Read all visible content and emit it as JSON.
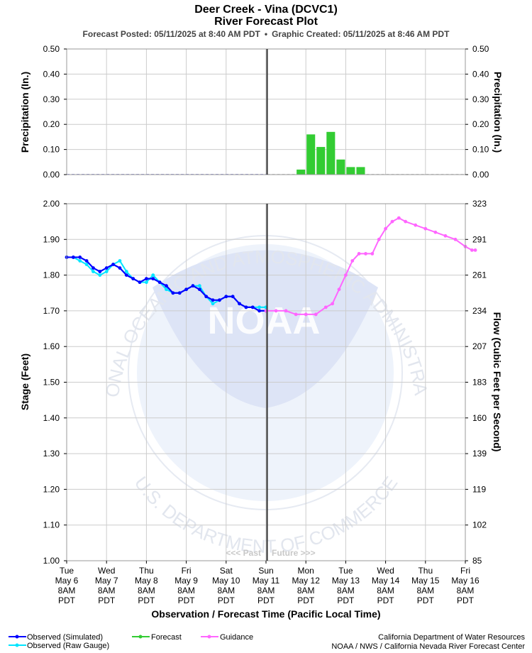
{
  "header": {
    "title": "Deer Creek - Vina (DCVC1)",
    "subtitle": "River Forecast Plot",
    "forecast_posted": "Forecast Posted: 05/11/2025 at 8:40 AM PDT",
    "separator": "•",
    "graphic_created": "Graphic Created: 05/11/2025 at 8:46 AM PDT"
  },
  "watermark": {
    "logo_text": "NOAA",
    "ring_top": "NATIONAL OCEANIC AND ATMOSPHERIC ADMINISTRATION",
    "ring_bottom": "U.S. DEPARTMENT OF COMMERCE"
  },
  "colors": {
    "observed_simulated": "#0000ff",
    "observed_raw": "#00e5ff",
    "forecast": "#33cc33",
    "guidance": "#ff66ff",
    "now_line": "#333333",
    "grid": "#cccccc"
  },
  "legend": {
    "observed_simulated": "Observed (Simulated)",
    "observed_raw": "Observed (Raw Gauge)",
    "forecast": "Forecast",
    "guidance": "Guidance"
  },
  "credits": {
    "line1": "California Department of Water Resources",
    "line2": "NOAA / NWS / California Nevada River Forecast Center"
  },
  "past_label": "<<< Past",
  "future_label": "Future >>>",
  "chart_data": {
    "type": "line",
    "xlabel": "Observation / Forecast Time (Pacific Local Time)",
    "x_ticks": [
      {
        "day": "Tue",
        "date": "May 6",
        "time": "8AM",
        "tz": "PDT"
      },
      {
        "day": "Wed",
        "date": "May 7",
        "time": "8AM",
        "tz": "PDT"
      },
      {
        "day": "Thu",
        "date": "May 8",
        "time": "8AM",
        "tz": "PDT"
      },
      {
        "day": "Fri",
        "date": "May 9",
        "time": "8AM",
        "tz": "PDT"
      },
      {
        "day": "Sat",
        "date": "May 10",
        "time": "8AM",
        "tz": "PDT"
      },
      {
        "day": "Sun",
        "date": "May 11",
        "time": "8AM",
        "tz": "PDT"
      },
      {
        "day": "Mon",
        "date": "May 12",
        "time": "8AM",
        "tz": "PDT"
      },
      {
        "day": "Tue",
        "date": "May 13",
        "time": "8AM",
        "tz": "PDT"
      },
      {
        "day": "Wed",
        "date": "May 14",
        "time": "8AM",
        "tz": "PDT"
      },
      {
        "day": "Thu",
        "date": "May 15",
        "time": "8AM",
        "tz": "PDT"
      },
      {
        "day": "Fri",
        "date": "May 16",
        "time": "8AM",
        "tz": "PDT"
      }
    ],
    "now": "2025-05-11T08:40",
    "precipitation": {
      "ylabel_left": "Precipitation (In.)",
      "ylabel_right": "Precipitation (In.)",
      "ylim": [
        0,
        0.5
      ],
      "y_ticks": [
        "0.00",
        "0.10",
        "0.20",
        "0.30",
        "0.40",
        "0.50"
      ],
      "observed_zero_line": true,
      "forecast_bars": [
        {
          "start": "2025-05-12T02:00",
          "end": "2025-05-12T08:00",
          "value": 0.02
        },
        {
          "start": "2025-05-12T08:00",
          "end": "2025-05-12T14:00",
          "value": 0.16
        },
        {
          "start": "2025-05-12T14:00",
          "end": "2025-05-12T20:00",
          "value": 0.11
        },
        {
          "start": "2025-05-12T20:00",
          "end": "2025-05-13T02:00",
          "value": 0.17
        },
        {
          "start": "2025-05-13T02:00",
          "end": "2025-05-13T08:00",
          "value": 0.06
        },
        {
          "start": "2025-05-13T08:00",
          "end": "2025-05-13T14:00",
          "value": 0.03
        },
        {
          "start": "2025-05-13T14:00",
          "end": "2025-05-13T20:00",
          "value": 0.03
        }
      ]
    },
    "stage": {
      "ylabel_left": "Stage (Feet)",
      "ylabel_right": "Flow (Cubic Feet per Second)",
      "ylim": [
        1.0,
        2.0
      ],
      "y_ticks": [
        "1.00",
        "1.10",
        "1.20",
        "1.30",
        "1.40",
        "1.50",
        "1.60",
        "1.70",
        "1.80",
        "1.90",
        "2.00"
      ],
      "flow_ticks": [
        "85",
        "102",
        "119",
        "139",
        "160",
        "183",
        "207",
        "234",
        "261",
        "291",
        "323"
      ],
      "observed_simulated": [
        [
          "2025-05-06T08:00",
          1.85
        ],
        [
          "2025-05-06T12:00",
          1.85
        ],
        [
          "2025-05-06T16:00",
          1.85
        ],
        [
          "2025-05-06T20:00",
          1.84
        ],
        [
          "2025-05-07T00:00",
          1.82
        ],
        [
          "2025-05-07T04:00",
          1.81
        ],
        [
          "2025-05-07T08:00",
          1.82
        ],
        [
          "2025-05-07T12:00",
          1.83
        ],
        [
          "2025-05-07T16:00",
          1.82
        ],
        [
          "2025-05-07T20:00",
          1.8
        ],
        [
          "2025-05-08T00:00",
          1.79
        ],
        [
          "2025-05-08T04:00",
          1.78
        ],
        [
          "2025-05-08T08:00",
          1.79
        ],
        [
          "2025-05-08T12:00",
          1.79
        ],
        [
          "2025-05-08T16:00",
          1.78
        ],
        [
          "2025-05-08T20:00",
          1.77
        ],
        [
          "2025-05-09T00:00",
          1.75
        ],
        [
          "2025-05-09T04:00",
          1.75
        ],
        [
          "2025-05-09T08:00",
          1.76
        ],
        [
          "2025-05-09T12:00",
          1.77
        ],
        [
          "2025-05-09T16:00",
          1.76
        ],
        [
          "2025-05-09T20:00",
          1.74
        ],
        [
          "2025-05-10T00:00",
          1.73
        ],
        [
          "2025-05-10T04:00",
          1.73
        ],
        [
          "2025-05-10T08:00",
          1.74
        ],
        [
          "2025-05-10T12:00",
          1.74
        ],
        [
          "2025-05-10T16:00",
          1.72
        ],
        [
          "2025-05-10T20:00",
          1.71
        ],
        [
          "2025-05-11T00:00",
          1.71
        ],
        [
          "2025-05-11T04:00",
          1.7
        ],
        [
          "2025-05-11T08:00",
          1.7
        ]
      ],
      "observed_raw": [
        [
          "2025-05-06T08:00",
          1.85
        ],
        [
          "2025-05-06T12:00",
          1.85
        ],
        [
          "2025-05-06T16:00",
          1.84
        ],
        [
          "2025-05-06T20:00",
          1.83
        ],
        [
          "2025-05-07T00:00",
          1.81
        ],
        [
          "2025-05-07T04:00",
          1.8
        ],
        [
          "2025-05-07T08:00",
          1.81
        ],
        [
          "2025-05-07T12:00",
          1.83
        ],
        [
          "2025-05-07T16:00",
          1.84
        ],
        [
          "2025-05-07T20:00",
          1.81
        ],
        [
          "2025-05-08T00:00",
          1.79
        ],
        [
          "2025-05-08T04:00",
          1.78
        ],
        [
          "2025-05-08T08:00",
          1.78
        ],
        [
          "2025-05-08T12:00",
          1.8
        ],
        [
          "2025-05-08T16:00",
          1.78
        ],
        [
          "2025-05-08T20:00",
          1.76
        ],
        [
          "2025-05-09T00:00",
          1.75
        ],
        [
          "2025-05-09T04:00",
          1.75
        ],
        [
          "2025-05-09T08:00",
          1.76
        ],
        [
          "2025-05-09T12:00",
          1.77
        ],
        [
          "2025-05-09T16:00",
          1.77
        ],
        [
          "2025-05-09T20:00",
          1.74
        ],
        [
          "2025-05-10T00:00",
          1.72
        ],
        [
          "2025-05-10T04:00",
          1.73
        ],
        [
          "2025-05-10T08:00",
          1.74
        ],
        [
          "2025-05-10T12:00",
          1.74
        ],
        [
          "2025-05-10T16:00",
          1.72
        ],
        [
          "2025-05-10T20:00",
          1.71
        ],
        [
          "2025-05-11T00:00",
          1.71
        ],
        [
          "2025-05-11T04:00",
          1.71
        ],
        [
          "2025-05-11T08:00",
          1.71
        ]
      ],
      "guidance": [
        [
          "2025-05-11T08:00",
          1.7
        ],
        [
          "2025-05-11T14:00",
          1.7
        ],
        [
          "2025-05-11T20:00",
          1.7
        ],
        [
          "2025-05-12T02:00",
          1.69
        ],
        [
          "2025-05-12T08:00",
          1.69
        ],
        [
          "2025-05-12T14:00",
          1.69
        ],
        [
          "2025-05-12T20:00",
          1.71
        ],
        [
          "2025-05-13T00:00",
          1.72
        ],
        [
          "2025-05-13T04:00",
          1.76
        ],
        [
          "2025-05-13T08:00",
          1.8
        ],
        [
          "2025-05-13T12:00",
          1.84
        ],
        [
          "2025-05-13T16:00",
          1.86
        ],
        [
          "2025-05-13T20:00",
          1.86
        ],
        [
          "2025-05-14T00:00",
          1.86
        ],
        [
          "2025-05-14T04:00",
          1.9
        ],
        [
          "2025-05-14T08:00",
          1.93
        ],
        [
          "2025-05-14T12:00",
          1.95
        ],
        [
          "2025-05-14T16:00",
          1.96
        ],
        [
          "2025-05-14T20:00",
          1.95
        ],
        [
          "2025-05-15T02:00",
          1.94
        ],
        [
          "2025-05-15T08:00",
          1.93
        ],
        [
          "2025-05-15T14:00",
          1.92
        ],
        [
          "2025-05-15T20:00",
          1.91
        ],
        [
          "2025-05-16T02:00",
          1.9
        ],
        [
          "2025-05-16T08:00",
          1.88
        ],
        [
          "2025-05-16T12:00",
          1.87
        ],
        [
          "2025-05-16T14:00",
          1.87
        ]
      ]
    }
  }
}
